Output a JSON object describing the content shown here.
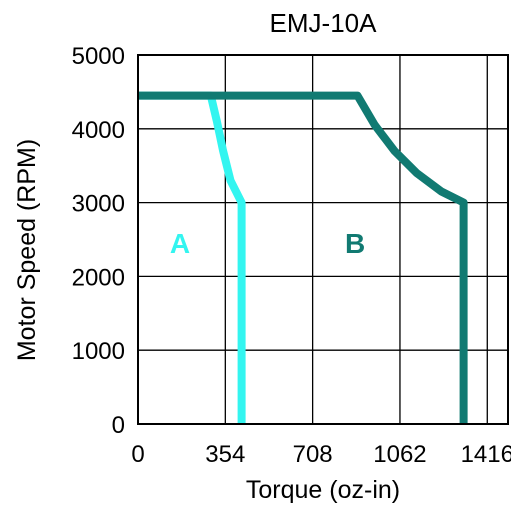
{
  "chart_data": {
    "type": "line",
    "title": "EMJ-10A",
    "xlabel": "Torque (oz-in)",
    "ylabel": "Motor Speed (RPM)",
    "xlim": [
      0,
      1500
    ],
    "ylim": [
      0,
      5000
    ],
    "x_ticks": [
      0,
      354,
      708,
      1062,
      1416
    ],
    "y_ticks": [
      0,
      1000,
      2000,
      3000,
      4000,
      5000
    ],
    "grid": true,
    "colors": {
      "A": "#33f5f0",
      "B": "#117a72"
    },
    "series": [
      {
        "name": "A",
        "points": [
          [
            0,
            4450
          ],
          [
            295,
            4450
          ],
          [
            320,
            4100
          ],
          [
            345,
            3700
          ],
          [
            375,
            3300
          ],
          [
            420,
            3000
          ],
          [
            420,
            0
          ]
        ]
      },
      {
        "name": "B",
        "points": [
          [
            0,
            4450
          ],
          [
            890,
            4450
          ],
          [
            960,
            4050
          ],
          [
            1040,
            3700
          ],
          [
            1130,
            3400
          ],
          [
            1230,
            3150
          ],
          [
            1320,
            3000
          ],
          [
            1320,
            0
          ]
        ]
      }
    ],
    "annotations": [
      {
        "text": "A",
        "x": 170,
        "y": 2450,
        "series": "A"
      },
      {
        "text": "B",
        "x": 880,
        "y": 2450,
        "series": "B"
      }
    ]
  }
}
